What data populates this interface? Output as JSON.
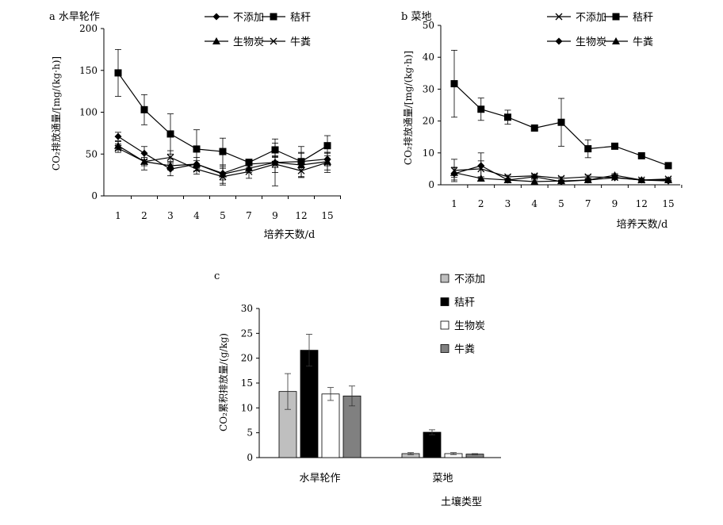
{
  "chart_data": [
    {
      "panel": "a",
      "type": "line",
      "title": "a 水旱轮作",
      "ylabel": "CO₂排放通量/[mg/(kg·h)]",
      "xlabel": "培养天数/d",
      "categories": [
        "1",
        "2",
        "3",
        "4",
        "5",
        "7",
        "9",
        "12",
        "15"
      ],
      "ylim": [
        0,
        200
      ],
      "yticks": [
        0,
        50,
        100,
        150,
        200
      ],
      "grid": false,
      "legend_position": "top-right",
      "series": [
        {
          "name": "不添加",
          "marker": "diamond",
          "values": [
            71,
            51,
            32,
            38,
            27,
            38,
            40,
            41,
            44
          ],
          "errors": [
            5,
            8,
            8,
            8,
            8,
            4,
            6,
            10,
            8
          ]
        },
        {
          "name": "秸秆",
          "marker": "square",
          "values": [
            147,
            103,
            74,
            56,
            53,
            40,
            55,
            41,
            60
          ],
          "errors": [
            28,
            18,
            24,
            23,
            16,
            4,
            8,
            18,
            12
          ]
        },
        {
          "name": "生物炭",
          "marker": "triangle",
          "values": [
            60,
            41,
            36,
            38,
            26,
            33,
            40,
            37,
            41
          ],
          "errors": [
            5,
            5,
            5,
            4,
            11,
            5,
            28,
            15,
            10
          ]
        },
        {
          "name": "牛粪",
          "marker": "cross",
          "values": [
            57,
            41,
            46,
            32,
            23,
            29,
            38,
            30,
            40
          ],
          "errors": [
            5,
            10,
            8,
            6,
            10,
            8,
            10,
            8,
            12
          ]
        }
      ]
    },
    {
      "panel": "b",
      "type": "line",
      "title": "b 菜地",
      "ylabel": "CO₂排放通量/[mg/(kg·h)]",
      "xlabel": "培养天数/d",
      "categories": [
        "1",
        "2",
        "3",
        "4",
        "5",
        "7",
        "9",
        "12",
        "15"
      ],
      "ylim": [
        0,
        50
      ],
      "yticks": [
        0,
        10,
        20,
        30,
        40,
        50
      ],
      "grid": false,
      "legend_position": "top-right",
      "series": [
        {
          "name": "不添加",
          "marker": "cross",
          "values": [
            4.5,
            5,
            2.5,
            2.8,
            2,
            2.5,
            2.3,
            1.5,
            1.8
          ],
          "errors": [
            3.5,
            2.5,
            0.5,
            0.5,
            0.5,
            0.5,
            0.5,
            0.3,
            0.3
          ]
        },
        {
          "name": "秸秆",
          "marker": "square",
          "values": [
            31.7,
            23.7,
            21.2,
            17.8,
            19.6,
            11.3,
            12.1,
            9.1,
            6
          ],
          "errors": [
            10.5,
            3.5,
            2.2,
            0.5,
            7.5,
            2.8,
            0.5,
            0.5,
            0.8
          ]
        },
        {
          "name": "生物炭",
          "marker": "diamond",
          "values": [
            3.5,
            6,
            1.5,
            2.5,
            1,
            1.5,
            2.2,
            1.5,
            1.2
          ],
          "errors": [
            2,
            4,
            0.5,
            0.5,
            0.5,
            0.5,
            0.5,
            0.3,
            0.3
          ]
        },
        {
          "name": "牛粪",
          "marker": "triangle",
          "values": [
            3.8,
            2,
            1.5,
            1,
            1.2,
            1.5,
            3,
            1.5,
            1.5
          ],
          "errors": [
            1.5,
            0.5,
            0.5,
            0.5,
            0.3,
            0.3,
            0.5,
            0.3,
            0.3
          ]
        }
      ]
    },
    {
      "panel": "c",
      "type": "bar",
      "title": "c",
      "ylabel": "CO₂累积排放量/(g/kg)",
      "xlabel": "土壤类型",
      "categories": [
        "水旱轮作",
        "菜地"
      ],
      "ylim": [
        0,
        30
      ],
      "yticks": [
        0,
        5,
        10,
        15,
        20,
        25,
        30
      ],
      "grid": false,
      "legend_position": "top-right",
      "series": [
        {
          "name": "不添加",
          "color": "#bfbfbf",
          "values": [
            13.3,
            0.8
          ],
          "errors": [
            3.6,
            0.2
          ]
        },
        {
          "name": "秸秆",
          "color": "#000000",
          "values": [
            21.6,
            5.1
          ],
          "errors": [
            3.2,
            0.5
          ]
        },
        {
          "name": "生物炭",
          "color": "#ffffff",
          "values": [
            12.8,
            0.8
          ],
          "errors": [
            1.3,
            0.2
          ]
        },
        {
          "name": "牛粪",
          "color": "#808080",
          "values": [
            12.4,
            0.7
          ],
          "errors": [
            2,
            0.1
          ]
        }
      ]
    }
  ]
}
